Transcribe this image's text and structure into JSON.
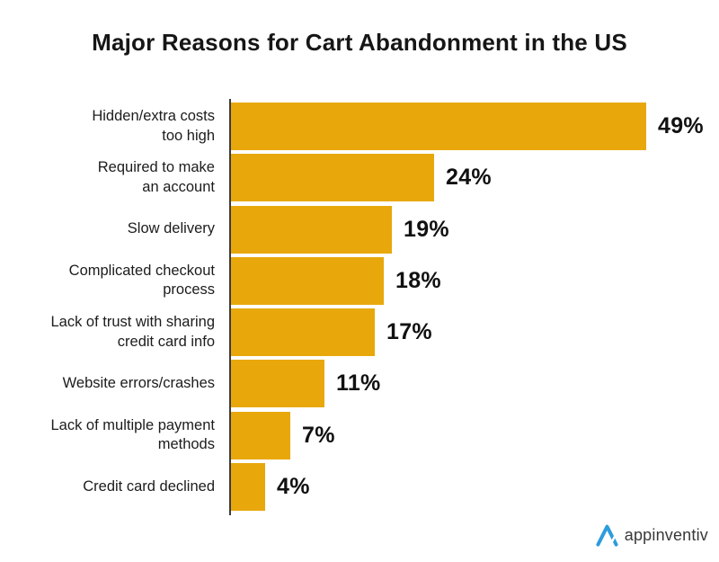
{
  "title": "Major Reasons for Cart Abandonment in the US",
  "logo": {
    "brand": "appinventiv"
  },
  "colors": {
    "background": "#FFFFFF",
    "bar": "#E8A80C",
    "axis": "#3C3C3C",
    "title_text": "#161616",
    "label_text": "#1C1C1C",
    "value_text": "#111111",
    "logo_blue": "#2D9CDB",
    "logo_text": "#383838"
  },
  "chart_data": {
    "type": "bar",
    "orientation": "horizontal",
    "title": "Major Reasons for Cart Abandonment in the US",
    "categories": [
      "Hidden/extra costs too high",
      "Required to make an account",
      "Slow delivery",
      "Complicated checkout process",
      "Lack of trust with sharing credit card info",
      "Website errors/crashes",
      "Lack of multiple payment methods",
      "Credit card declined"
    ],
    "values": [
      49,
      24,
      19,
      18,
      17,
      11,
      7,
      4
    ],
    "unit": "%",
    "max_value": 49,
    "xlim": [
      0,
      52
    ],
    "grid": false,
    "legend": false,
    "value_label_position": "end-of-bar",
    "bars": [
      {
        "label_lines": [
          "Hidden/extra costs",
          "too high"
        ],
        "value": 49,
        "display": "49%"
      },
      {
        "label_lines": [
          "Required to make",
          "an account"
        ],
        "value": 24,
        "display": "24%"
      },
      {
        "label_lines": [
          "Slow delivery"
        ],
        "value": 19,
        "display": "19%"
      },
      {
        "label_lines": [
          "Complicated checkout",
          "process"
        ],
        "value": 18,
        "display": "18%"
      },
      {
        "label_lines": [
          "Lack of trust with sharing",
          "credit card info"
        ],
        "value": 17,
        "display": "17%"
      },
      {
        "label_lines": [
          "Website errors/crashes"
        ],
        "value": 11,
        "display": "11%"
      },
      {
        "label_lines": [
          "Lack of multiple payment",
          "methods"
        ],
        "value": 7,
        "display": "7%"
      },
      {
        "label_lines": [
          "Credit card declined"
        ],
        "value": 4,
        "display": "4%"
      }
    ]
  }
}
